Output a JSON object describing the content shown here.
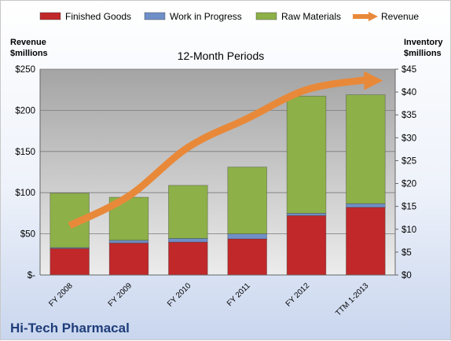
{
  "chart_data": {
    "type": "bar",
    "title": "12-Month Periods",
    "company": "Hi-Tech Pharmacal",
    "left_axis_title": [
      "Revenue",
      "$millions"
    ],
    "right_axis_title": [
      "Inventory",
      "$millions"
    ],
    "categories": [
      "FY 2008",
      "FY 2009",
      "FY 2010",
      "FY 2011",
      "FY 2012",
      "TTM 1-2013"
    ],
    "stacked": true,
    "series": [
      {
        "name": "Finished Goods",
        "axis": "right",
        "values": [
          5.8,
          7.0,
          7.2,
          7.9,
          13.0,
          14.8
        ],
        "color": "#c0282a"
      },
      {
        "name": "Work in Progress",
        "axis": "right",
        "values": [
          0.2,
          0.6,
          0.8,
          1.1,
          0.5,
          0.8
        ],
        "color": "#6f8fc7"
      },
      {
        "name": "Raw Materials",
        "axis": "right",
        "values": [
          11.9,
          9.4,
          11.6,
          14.6,
          25.6,
          23.8
        ],
        "color": "#8db048"
      },
      {
        "name": "Revenue",
        "type": "line",
        "axis": "left",
        "values": [
          60,
          96,
          155,
          190,
          225,
          237
        ],
        "color": "#e8893a"
      }
    ],
    "left_axis": {
      "min": 0,
      "max": 250,
      "step": 50,
      "tick_labels": [
        "$-",
        "$50",
        "$100",
        "$150",
        "$200",
        "$250"
      ]
    },
    "right_axis": {
      "min": 0,
      "max": 45,
      "step": 5,
      "tick_labels": [
        "$0",
        "$5",
        "$10",
        "$15",
        "$20",
        "$25",
        "$30",
        "$35",
        "$40",
        "$45"
      ]
    },
    "grid": true,
    "legend_position": "top"
  }
}
